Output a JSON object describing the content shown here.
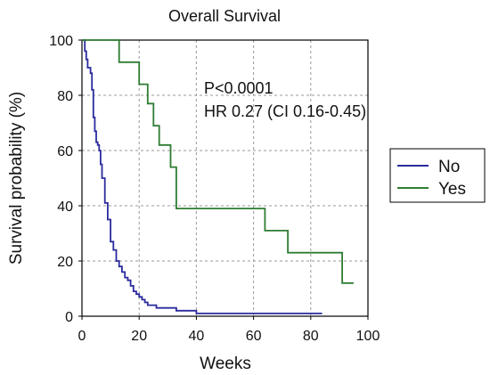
{
  "chart_data": {
    "type": "line",
    "title": "Overall Survival",
    "xlabel": "Weeks",
    "ylabel": "Survival probability (%)",
    "xlim": [
      0,
      100
    ],
    "ylim": [
      0,
      100
    ],
    "xticks": [
      0,
      20,
      40,
      60,
      80,
      100
    ],
    "yticks": [
      0,
      20,
      40,
      60,
      80,
      100
    ],
    "grid": true,
    "legend_position": "right",
    "annotations": [
      "P<0.0001",
      "HR 0.27 (CI 0.16-0.45)"
    ],
    "series": [
      {
        "name": "No",
        "color": "#2b2b9e",
        "step": true,
        "x": [
          0,
          1,
          1.5,
          2,
          3,
          3.5,
          4,
          4.5,
          5,
          5.5,
          6,
          6.5,
          7,
          8,
          9,
          10,
          11,
          12,
          13,
          14,
          15,
          16,
          17,
          18,
          19,
          20,
          21,
          22,
          23,
          24,
          26,
          28,
          30,
          31,
          33,
          36,
          40,
          84
        ],
        "y": [
          100,
          96,
          93,
          90,
          88,
          82,
          72,
          67,
          63,
          62,
          60,
          55,
          50,
          41,
          35,
          27,
          24,
          20,
          18,
          16,
          14,
          13,
          11,
          9,
          8,
          7,
          6,
          5,
          4,
          4,
          3,
          3,
          3,
          3,
          2,
          2,
          1,
          1
        ]
      },
      {
        "name": "Yes",
        "color": "#2e7d32",
        "step": true,
        "x": [
          0,
          13,
          20,
          23,
          25,
          27,
          31,
          33,
          36,
          64,
          72,
          91,
          95
        ],
        "y": [
          100,
          92,
          84,
          77,
          69,
          62,
          54,
          39,
          39,
          31,
          23,
          12,
          12
        ]
      }
    ]
  }
}
